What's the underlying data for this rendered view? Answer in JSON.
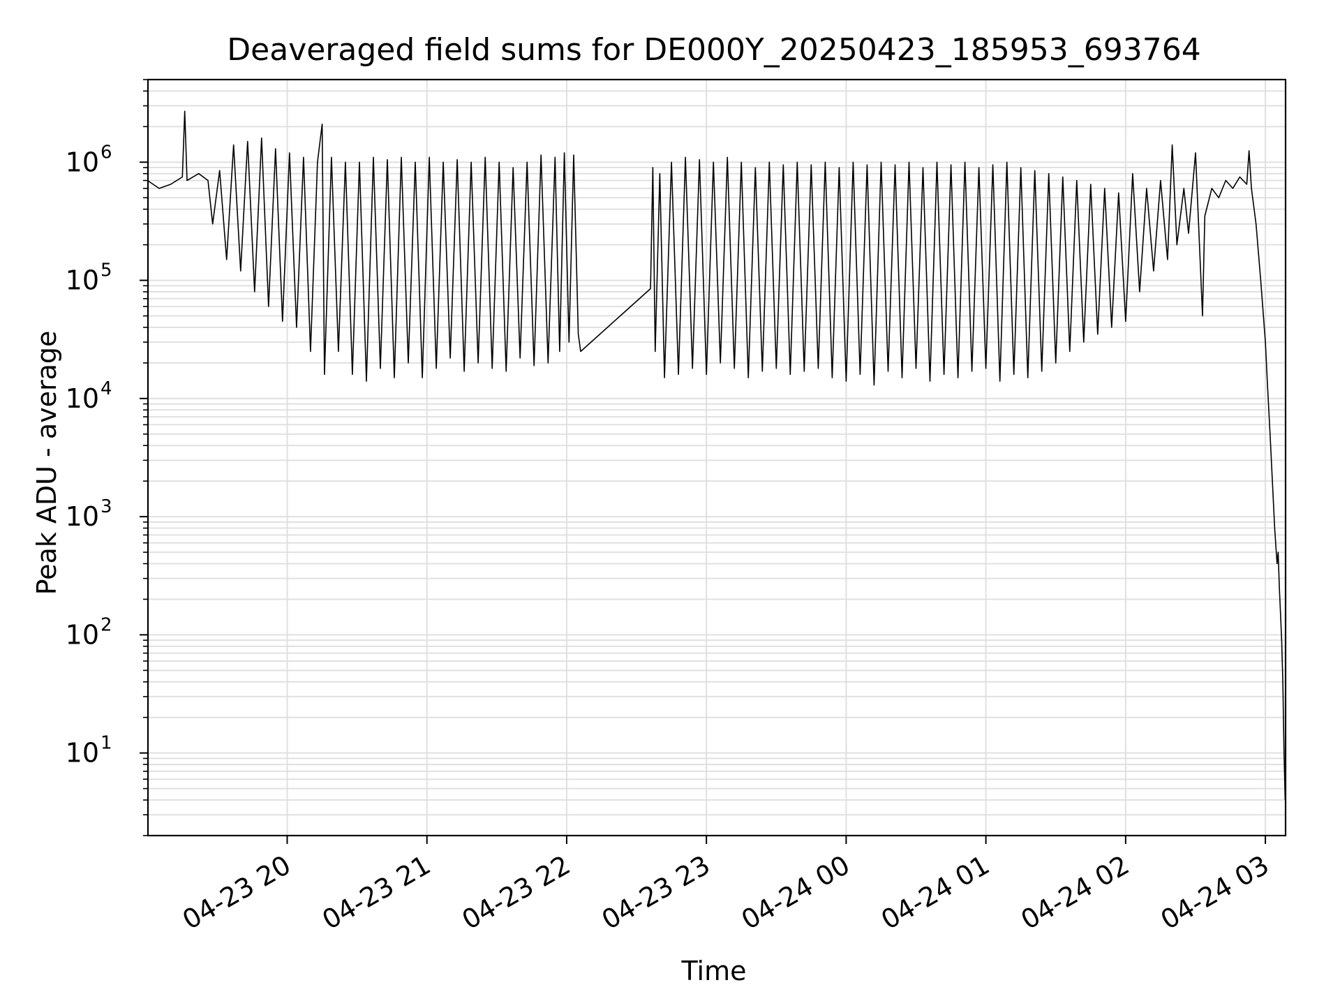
{
  "chart_data": {
    "type": "line",
    "title": "Deaveraged field sums for DE000Y_20250423_185953_693764",
    "xlabel": "Time",
    "ylabel": "Peak ADU - average",
    "yscale": "log",
    "ylim": [
      2,
      5000000
    ],
    "xlim": [
      "2025-04-23 19:00:13",
      "2025-04-24 03:08:40"
    ],
    "grid": true,
    "line_color": "#000000",
    "grid_color": "#e0e0e0",
    "x_ticks": [
      {
        "value": "2025-04-23 20:00",
        "label": "04-23 20"
      },
      {
        "value": "2025-04-23 21:00",
        "label": "04-23 21"
      },
      {
        "value": "2025-04-23 22:00",
        "label": "04-23 22"
      },
      {
        "value": "2025-04-23 23:00",
        "label": "04-23 23"
      },
      {
        "value": "2025-04-24 00:00",
        "label": "04-24 00"
      },
      {
        "value": "2025-04-24 01:00",
        "label": "04-24 01"
      },
      {
        "value": "2025-04-24 02:00",
        "label": "04-24 02"
      },
      {
        "value": "2025-04-24 03:00",
        "label": "04-24 03"
      }
    ],
    "y_ticks": [
      {
        "value": 10,
        "base": "10",
        "exp": "1"
      },
      {
        "value": 100,
        "base": "10",
        "exp": "2"
      },
      {
        "value": 1000,
        "base": "10",
        "exp": "3"
      },
      {
        "value": 10000,
        "base": "10",
        "exp": "4"
      },
      {
        "value": 100000,
        "base": "10",
        "exp": "5"
      },
      {
        "value": 1000000,
        "base": "10",
        "exp": "6"
      }
    ],
    "series": [
      {
        "points": [
          [
            "2025-04-23 19:00",
            700000
          ],
          [
            "2025-04-23 19:05",
            600000
          ],
          [
            "2025-04-23 19:10",
            650000
          ],
          [
            "2025-04-23 19:15",
            750000
          ],
          [
            "2025-04-23 19:16",
            2700000
          ],
          [
            "2025-04-23 19:17",
            700000
          ],
          [
            "2025-04-23 19:22",
            800000
          ],
          [
            "2025-04-23 19:26",
            700000
          ],
          [
            "2025-04-23 19:28",
            300000
          ],
          [
            "2025-04-23 19:31",
            850000
          ],
          [
            "2025-04-23 19:34",
            150000
          ],
          [
            "2025-04-23 19:37",
            1400000
          ],
          [
            "2025-04-23 19:40",
            120000
          ],
          [
            "2025-04-23 19:43",
            1500000
          ],
          [
            "2025-04-23 19:46",
            80000
          ],
          [
            "2025-04-23 19:49",
            1600000
          ],
          [
            "2025-04-23 19:52",
            60000
          ],
          [
            "2025-04-23 19:55",
            1300000
          ],
          [
            "2025-04-23 19:58",
            45000
          ],
          [
            "2025-04-23 20:01",
            1200000
          ],
          [
            "2025-04-23 20:04",
            40000
          ],
          [
            "2025-04-23 20:07",
            1100000
          ],
          [
            "2025-04-23 20:10",
            25000
          ],
          [
            "2025-04-23 20:13",
            1000000
          ],
          [
            "2025-04-23 20:15",
            2100000
          ],
          [
            "2025-04-23 20:16",
            16000
          ],
          [
            "2025-04-23 20:19",
            1100000
          ],
          [
            "2025-04-23 20:22",
            25000
          ],
          [
            "2025-04-23 20:25",
            1000000
          ],
          [
            "2025-04-23 20:28",
            16000
          ],
          [
            "2025-04-23 20:31",
            1000000
          ],
          [
            "2025-04-23 20:34",
            14000
          ],
          [
            "2025-04-23 20:37",
            1100000
          ],
          [
            "2025-04-23 20:40",
            18000
          ],
          [
            "2025-04-23 20:43",
            1050000
          ],
          [
            "2025-04-23 20:46",
            15000
          ],
          [
            "2025-04-23 20:49",
            1100000
          ],
          [
            "2025-04-23 20:52",
            20000
          ],
          [
            "2025-04-23 20:55",
            1000000
          ],
          [
            "2025-04-23 20:58",
            15000
          ],
          [
            "2025-04-23 21:01",
            1100000
          ],
          [
            "2025-04-23 21:04",
            18000
          ],
          [
            "2025-04-23 21:07",
            1000000
          ],
          [
            "2025-04-23 21:10",
            22000
          ],
          [
            "2025-04-23 21:13",
            1050000
          ],
          [
            "2025-04-23 21:16",
            17000
          ],
          [
            "2025-04-23 21:19",
            1000000
          ],
          [
            "2025-04-23 21:22",
            20000
          ],
          [
            "2025-04-23 21:25",
            1100000
          ],
          [
            "2025-04-23 21:28",
            18000
          ],
          [
            "2025-04-23 21:31",
            1000000
          ],
          [
            "2025-04-23 21:34",
            17000
          ],
          [
            "2025-04-23 21:37",
            900000
          ],
          [
            "2025-04-23 21:40",
            22000
          ],
          [
            "2025-04-23 21:43",
            1000000
          ],
          [
            "2025-04-23 21:46",
            19000
          ],
          [
            "2025-04-23 21:49",
            1150000
          ],
          [
            "2025-04-23 21:52",
            20000
          ],
          [
            "2025-04-23 21:55",
            1100000
          ],
          [
            "2025-04-23 21:57",
            25000
          ],
          [
            "2025-04-23 21:59",
            1200000
          ],
          [
            "2025-04-23 22:01",
            30000
          ],
          [
            "2025-04-23 22:03",
            1150000
          ],
          [
            "2025-04-23 22:05",
            35000
          ],
          [
            "2025-04-23 22:06",
            25000
          ],
          [
            "2025-04-23 22:36",
            85000
          ],
          [
            "2025-04-23 22:37",
            900000
          ],
          [
            "2025-04-23 22:38",
            25000
          ],
          [
            "2025-04-23 22:40",
            800000
          ],
          [
            "2025-04-23 22:42",
            15000
          ],
          [
            "2025-04-23 22:45",
            1000000
          ],
          [
            "2025-04-23 22:48",
            16000
          ],
          [
            "2025-04-23 22:51",
            1100000
          ],
          [
            "2025-04-23 22:54",
            18000
          ],
          [
            "2025-04-23 22:57",
            1050000
          ],
          [
            "2025-04-23 23:00",
            16000
          ],
          [
            "2025-04-23 23:03",
            1000000
          ],
          [
            "2025-04-23 23:06",
            20000
          ],
          [
            "2025-04-23 23:09",
            1100000
          ],
          [
            "2025-04-23 23:12",
            18000
          ],
          [
            "2025-04-23 23:15",
            1000000
          ],
          [
            "2025-04-23 23:18",
            15000
          ],
          [
            "2025-04-23 23:21",
            900000
          ],
          [
            "2025-04-23 23:24",
            17000
          ],
          [
            "2025-04-23 23:27",
            1000000
          ],
          [
            "2025-04-23 23:30",
            18000
          ],
          [
            "2025-04-23 23:33",
            950000
          ],
          [
            "2025-04-23 23:36",
            16000
          ],
          [
            "2025-04-23 23:39",
            1000000
          ],
          [
            "2025-04-23 23:42",
            17000
          ],
          [
            "2025-04-23 23:45",
            950000
          ],
          [
            "2025-04-23 23:48",
            18000
          ],
          [
            "2025-04-23 23:51",
            1000000
          ],
          [
            "2025-04-23 23:54",
            15000
          ],
          [
            "2025-04-23 23:57",
            900000
          ],
          [
            "2025-04-24 00:00",
            14000
          ],
          [
            "2025-04-24 00:03",
            1000000
          ],
          [
            "2025-04-24 00:06",
            16000
          ],
          [
            "2025-04-24 00:09",
            950000
          ],
          [
            "2025-04-24 00:12",
            13000
          ],
          [
            "2025-04-24 00:15",
            1000000
          ],
          [
            "2025-04-24 00:18",
            17000
          ],
          [
            "2025-04-24 00:21",
            950000
          ],
          [
            "2025-04-24 00:24",
            15000
          ],
          [
            "2025-04-24 00:27",
            1000000
          ],
          [
            "2025-04-24 00:30",
            18000
          ],
          [
            "2025-04-24 00:33",
            900000
          ],
          [
            "2025-04-24 00:36",
            14000
          ],
          [
            "2025-04-24 00:39",
            1000000
          ],
          [
            "2025-04-24 00:42",
            16000
          ],
          [
            "2025-04-24 00:45",
            950000
          ],
          [
            "2025-04-24 00:48",
            15000
          ],
          [
            "2025-04-24 00:51",
            1000000
          ],
          [
            "2025-04-24 00:54",
            17000
          ],
          [
            "2025-04-24 00:57",
            900000
          ],
          [
            "2025-04-24 01:00",
            18000
          ],
          [
            "2025-04-24 01:03",
            950000
          ],
          [
            "2025-04-24 01:06",
            14000
          ],
          [
            "2025-04-24 01:09",
            1000000
          ],
          [
            "2025-04-24 01:12",
            16000
          ],
          [
            "2025-04-24 01:15",
            900000
          ],
          [
            "2025-04-24 01:18",
            15000
          ],
          [
            "2025-04-24 01:21",
            850000
          ],
          [
            "2025-04-24 01:24",
            17000
          ],
          [
            "2025-04-24 01:27",
            800000
          ],
          [
            "2025-04-24 01:30",
            20000
          ],
          [
            "2025-04-24 01:33",
            750000
          ],
          [
            "2025-04-24 01:36",
            25000
          ],
          [
            "2025-04-24 01:39",
            700000
          ],
          [
            "2025-04-24 01:42",
            30000
          ],
          [
            "2025-04-24 01:45",
            650000
          ],
          [
            "2025-04-24 01:48",
            35000
          ],
          [
            "2025-04-24 01:51",
            600000
          ],
          [
            "2025-04-24 01:54",
            40000
          ],
          [
            "2025-04-24 01:57",
            550000
          ],
          [
            "2025-04-24 02:00",
            45000
          ],
          [
            "2025-04-24 02:03",
            800000
          ],
          [
            "2025-04-24 02:06",
            80000
          ],
          [
            "2025-04-24 02:09",
            600000
          ],
          [
            "2025-04-24 02:12",
            120000
          ],
          [
            "2025-04-24 02:15",
            700000
          ],
          [
            "2025-04-24 02:18",
            150000
          ],
          [
            "2025-04-24 02:20",
            1400000
          ],
          [
            "2025-04-24 02:22",
            200000
          ],
          [
            "2025-04-24 02:25",
            600000
          ],
          [
            "2025-04-24 02:27",
            250000
          ],
          [
            "2025-04-24 02:30",
            1200000
          ],
          [
            "2025-04-24 02:33",
            50000
          ],
          [
            "2025-04-24 02:34",
            350000
          ],
          [
            "2025-04-24 02:37",
            600000
          ],
          [
            "2025-04-24 02:40",
            500000
          ],
          [
            "2025-04-24 02:43",
            700000
          ],
          [
            "2025-04-24 02:46",
            600000
          ],
          [
            "2025-04-24 02:49",
            750000
          ],
          [
            "2025-04-24 02:52",
            650000
          ],
          [
            "2025-04-24 02:53",
            1250000
          ],
          [
            "2025-04-24 02:54",
            600000
          ],
          [
            "2025-04-24 02:56",
            300000
          ],
          [
            "2025-04-24 02:58",
            100000
          ],
          [
            "2025-04-24 03:00",
            30000
          ],
          [
            "2025-04-24 03:01",
            12000
          ],
          [
            "2025-04-24 03:02",
            5000
          ],
          [
            "2025-04-24 03:03",
            2000
          ],
          [
            "2025-04-24 03:04",
            800
          ],
          [
            "2025-04-24 03:05",
            400
          ],
          [
            "2025-04-24 03:05:30",
            500
          ],
          [
            "2025-04-24 03:06",
            250
          ],
          [
            "2025-04-24 03:06:30",
            150
          ],
          [
            "2025-04-24 03:07",
            90
          ],
          [
            "2025-04-24 03:07:30",
            40
          ],
          [
            "2025-04-24 03:08",
            10
          ],
          [
            "2025-04-24 03:08:30",
            4
          ]
        ]
      }
    ]
  }
}
